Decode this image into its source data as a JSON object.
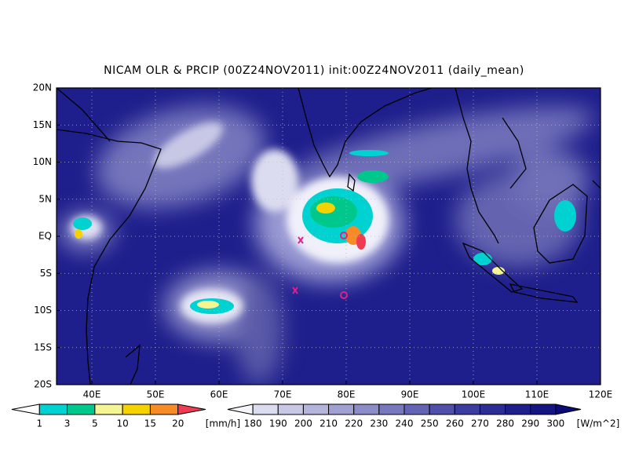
{
  "title": "NICAM OLR & PRCIP (00Z24NOV2011) init:00Z24NOV2011 (daily_mean)",
  "lat_labels": [
    "20N",
    "15N",
    "10N",
    "5N",
    "EQ",
    "5S",
    "10S",
    "15S",
    "20S"
  ],
  "lon_labels": [
    "40E",
    "50E",
    "60E",
    "70E",
    "80E",
    "90E",
    "100E",
    "110E",
    "120E"
  ],
  "precip_colorbar": {
    "levels": [
      1,
      3,
      5,
      10,
      15,
      20
    ],
    "unit": "[mm/h]",
    "colors": [
      "#ffffff",
      "#00d2d2",
      "#00c88c",
      "#f5f596",
      "#f5d200",
      "#f58c28",
      "#f03c50"
    ]
  },
  "olr_colorbar": {
    "levels": [
      180,
      190,
      200,
      210,
      220,
      230,
      240,
      250,
      260,
      270,
      280,
      290,
      300
    ],
    "unit": "[W/m^2]",
    "colors": [
      "#f5f5fa",
      "#dcdcf0",
      "#c8c8e6",
      "#b4b4dc",
      "#a0a0d2",
      "#8c8cc8",
      "#7878be",
      "#6464b4",
      "#5050aa",
      "#3c3ca0",
      "#2d2d96",
      "#1e1e8c",
      "#141482",
      "#0a0a78"
    ]
  }
}
